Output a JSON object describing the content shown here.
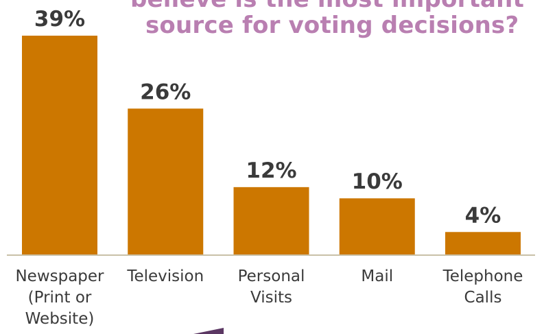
{
  "title_lines": [
    "believe is the most important",
    "source for voting decisions?"
  ],
  "colors": {
    "bar": "#cc7700",
    "title": "#b97fb1",
    "label_dark": "#3a3a3a",
    "axis": "#c9c0a7"
  },
  "chart_data": {
    "type": "bar",
    "categories": [
      [
        "Newspaper",
        "(Print or",
        "Website)"
      ],
      [
        "Television"
      ],
      [
        "Personal",
        "Visits"
      ],
      [
        "Mail"
      ],
      [
        "Telephone",
        "Calls"
      ]
    ],
    "values": [
      39,
      26,
      12,
      10,
      4
    ],
    "value_labels": [
      "39%",
      "26%",
      "12%",
      "10%",
      "4%"
    ],
    "title": "believe is the most important source for voting decisions?",
    "xlabel": "",
    "ylabel": "",
    "ylim": [
      0,
      39
    ],
    "grid": false,
    "legend": "none"
  }
}
